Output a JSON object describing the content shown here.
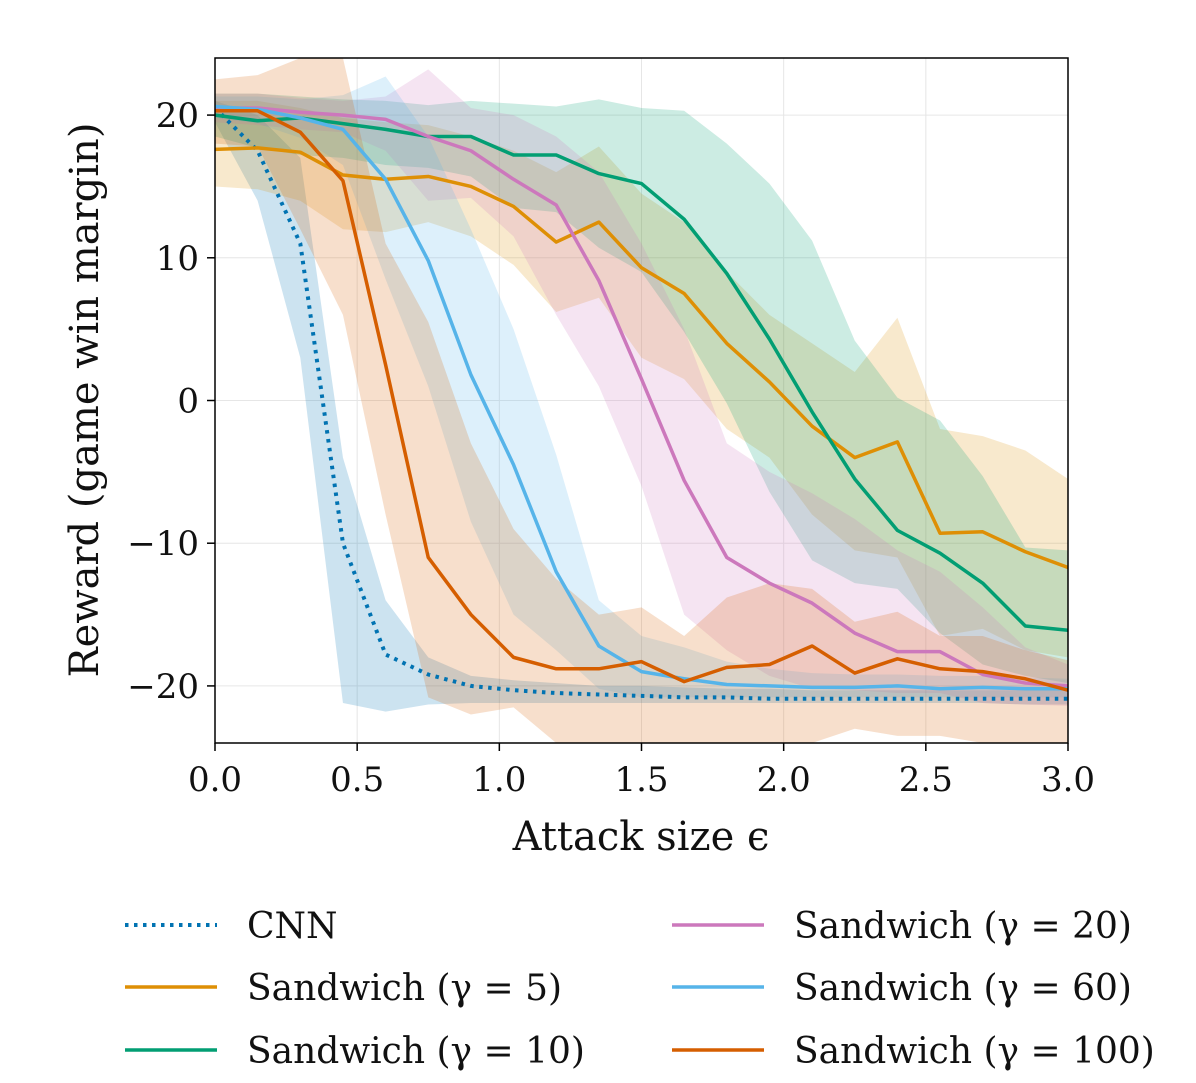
{
  "chart_data": {
    "type": "line",
    "xlabel": "Attack size ϵ",
    "ylabel": "Reward (game win margin)",
    "xlim": [
      0,
      3
    ],
    "ylim": [
      -24,
      24
    ],
    "xticks": [
      0,
      0.5,
      1,
      1.5,
      2,
      2.5,
      3
    ],
    "xtick_labels": [
      "0.0",
      "0.5",
      "1.0",
      "1.5",
      "2.0",
      "2.5",
      "3.0"
    ],
    "yticks": [
      -20,
      -10,
      0,
      10,
      20
    ],
    "ytick_labels": [
      "−20",
      "−10",
      "0",
      "10",
      "20"
    ],
    "grid": true,
    "legend_placement": "below",
    "x": [
      0,
      0.15,
      0.3,
      0.45,
      0.6,
      0.75,
      0.9,
      1.05,
      1.2,
      1.35,
      1.5,
      1.65,
      1.8,
      1.95,
      2.1,
      2.25,
      2.4,
      2.55,
      2.7,
      2.85,
      3.0
    ],
    "series": [
      {
        "name": "CNN",
        "color": "#0173b2",
        "dash": "dotted",
        "values": [
          20.5,
          17.5,
          11,
          -10,
          -17.8,
          -19.2,
          -20,
          -20.3,
          -20.5,
          -20.6,
          -20.7,
          -20.8,
          -20.8,
          -20.9,
          -20.9,
          -20.9,
          -20.9,
          -20.9,
          -20.9,
          -20.9,
          -20.9
        ],
        "band_upper": [
          21,
          20,
          17,
          -4,
          -14,
          -18,
          -19.3,
          -19.6,
          -19.8,
          -20,
          -20,
          -20.1,
          -20.2,
          -20.2,
          -20.3,
          -20.3,
          -20.3,
          -20.3,
          -20.3,
          -20.3,
          -20.3
        ],
        "band_lower": [
          19.5,
          14,
          3,
          -21.2,
          -21.8,
          -21.3,
          -21.2,
          -21.2,
          -21.2,
          -21.2,
          -21.2,
          -21.2,
          -21.2,
          -21.2,
          -21.2,
          -21.2,
          -21.2,
          -21.2,
          -21.2,
          -21.3,
          -21.3
        ]
      },
      {
        "name": "Sandwich (γ = 5)",
        "color": "#de8f05",
        "dash": "solid",
        "values": [
          17.6,
          17.7,
          17.4,
          15.8,
          15.5,
          15.7,
          15,
          13.6,
          11.1,
          12.5,
          9.3,
          7.5,
          4,
          1.3,
          -1.8,
          -4,
          -2.9,
          -9.3,
          -9.2,
          -10.6,
          -11.7
        ],
        "band_upper": [
          21,
          21,
          20.5,
          19.8,
          19.5,
          19.3,
          18.5,
          17.5,
          16,
          17.8,
          14.5,
          12.5,
          9,
          6,
          4,
          2,
          5.8,
          -2,
          -2.5,
          -3.5,
          -5.5
        ],
        "band_lower": [
          15,
          14.8,
          14,
          12,
          11.8,
          12.5,
          11.5,
          9.5,
          6.2,
          7.2,
          3,
          1.5,
          -2,
          -4,
          -8,
          -10.5,
          -11,
          -16.5,
          -16,
          -17.5,
          -18
        ]
      },
      {
        "name": "Sandwich (γ = 10)",
        "color": "#029e73",
        "dash": "solid",
        "values": [
          20,
          19.6,
          19.8,
          19.4,
          19,
          18.5,
          18.5,
          17.2,
          17.2,
          15.9,
          15.2,
          12.7,
          8.9,
          4.3,
          -0.8,
          -5.5,
          -9.1,
          -10.7,
          -12.8,
          -15.8,
          -16.1
        ],
        "band_upper": [
          21.5,
          21.5,
          21.3,
          21.1,
          21,
          20.7,
          21,
          20.8,
          20.6,
          21.1,
          20.5,
          20.3,
          18,
          15.2,
          11.2,
          4.2,
          0.2,
          -1.4,
          -5.3,
          -10.3,
          -10.5
        ],
        "band_lower": [
          18.5,
          17.7,
          17.2,
          17,
          16.5,
          16.3,
          15.7,
          13.5,
          13.2,
          10.7,
          9,
          4.8,
          -0.2,
          -6.4,
          -11.2,
          -12.8,
          -13.2,
          -16.3,
          -18.5,
          -19.3,
          -19.8
        ]
      },
      {
        "name": "Sandwich (γ = 20)",
        "color": "#cc78bc",
        "dash": "solid",
        "values": [
          20.5,
          20.5,
          20.2,
          20,
          19.7,
          18.5,
          17.5,
          15.5,
          13.7,
          8.4,
          1.5,
          -5.6,
          -11,
          -12.8,
          -14.2,
          -16.3,
          -17.6,
          -17.6,
          -19.2,
          -19.8,
          -20
        ],
        "band_upper": [
          21.5,
          21.5,
          21.2,
          21,
          21.3,
          23.2,
          20.5,
          20,
          18.5,
          16,
          11,
          5,
          -3,
          -5,
          -6.5,
          -8.3,
          -10.5,
          -12,
          -14.5,
          -17.3,
          -18.5
        ],
        "band_lower": [
          19.5,
          19.3,
          19,
          18.8,
          17.5,
          14,
          14.2,
          11.5,
          6,
          1,
          -6,
          -15,
          -17.5,
          -19.3,
          -20.2,
          -20.3,
          -20.5,
          -20.5,
          -21.2,
          -21.3,
          -21.4
        ]
      },
      {
        "name": "Sandwich (γ = 60)",
        "color": "#56b4e9",
        "dash": "solid",
        "values": [
          20.6,
          20.4,
          19.8,
          19,
          15.5,
          9.8,
          1.8,
          -4.5,
          -12,
          -17.2,
          -19,
          -19.5,
          -19.9,
          -20,
          -20.1,
          -20.1,
          -20,
          -20.2,
          -20.1,
          -20.2,
          -20.2
        ],
        "band_upper": [
          21.3,
          21.3,
          21.1,
          21.4,
          22.7,
          18.5,
          12,
          5,
          -3.8,
          -14,
          -16.5,
          -17.3,
          -18.3,
          -18.8,
          -19.1,
          -19.2,
          -19.2,
          -19.3,
          -19.3,
          -19.4,
          -19.5
        ],
        "band_lower": [
          19.8,
          19.4,
          18.4,
          16.5,
          8.5,
          1,
          -8.5,
          -15,
          -17.5,
          -20.2,
          -20.8,
          -20.8,
          -20.8,
          -20.8,
          -20.8,
          -20.8,
          -20.8,
          -20.8,
          -20.8,
          -20.8,
          -20.8
        ]
      },
      {
        "name": "Sandwich (γ = 100)",
        "color": "#d55e00",
        "dash": "solid",
        "values": [
          20.3,
          20.3,
          18.8,
          15.4,
          2.5,
          -11,
          -15,
          -18,
          -18.8,
          -18.8,
          -18.3,
          -19.7,
          -18.7,
          -18.5,
          -17.2,
          -19.1,
          -18.1,
          -18.8,
          -19,
          -19.5,
          -20.3
        ],
        "band_upper": [
          22.5,
          22.8,
          24,
          24,
          11,
          5.5,
          -3,
          -9,
          -12.5,
          -15,
          -14.5,
          -16.5,
          -13.8,
          -12.8,
          -13.2,
          -15.5,
          -14.8,
          -16.5,
          -16.5,
          -17.5,
          -18.2
        ],
        "band_lower": [
          18,
          17.8,
          12,
          6,
          -8,
          -20.8,
          -22,
          -21.5,
          -24,
          -24,
          -24,
          -24,
          -24,
          -24,
          -24,
          -23,
          -23.5,
          -23.5,
          -24,
          -24,
          -24
        ]
      }
    ]
  }
}
